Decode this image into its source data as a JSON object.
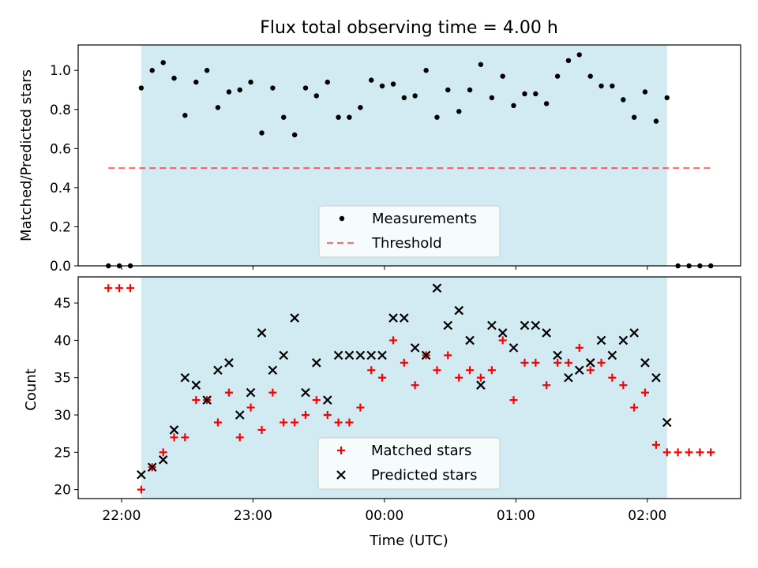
{
  "title": "Flux total observing time = 4.00 h",
  "colors": {
    "shade": "#add8e6",
    "measurement": "#000000",
    "threshold": "#ff0000",
    "matched": "#ff0000",
    "predicted": "#000000"
  },
  "chart_data": [
    {
      "type": "scatter",
      "ylabel": "Matched/Predicted stars",
      "xlabel": "",
      "x_unit": "hours since 00:00 UTC",
      "xlim": [
        -2.33,
        2.71
      ],
      "ylim": [
        0.0,
        1.13
      ],
      "yticks": [
        0.0,
        0.2,
        0.4,
        0.6,
        0.8,
        1.0
      ],
      "ytick_labels": [
        "0.0",
        "0.2",
        "0.4",
        "0.6",
        "0.8",
        "1.0"
      ],
      "shaded_region": [
        -1.85,
        2.15
      ],
      "legend_placement": "lower center",
      "series": [
        {
          "name": "Measurements",
          "style": "dots",
          "x": [
            -2.1,
            -2.017,
            -1.933,
            -1.85,
            -1.767,
            -1.683,
            -1.6,
            -1.517,
            -1.433,
            -1.35,
            -1.267,
            -1.183,
            -1.1,
            -1.017,
            -0.933,
            -0.85,
            -0.767,
            -0.683,
            -0.6,
            -0.517,
            -0.433,
            -0.35,
            -0.267,
            -0.183,
            -0.1,
            -0.017,
            0.067,
            0.15,
            0.233,
            0.317,
            0.4,
            0.483,
            0.567,
            0.65,
            0.733,
            0.817,
            0.9,
            0.983,
            1.067,
            1.15,
            1.233,
            1.317,
            1.4,
            1.483,
            1.567,
            1.65,
            1.733,
            1.817,
            1.9,
            1.983,
            2.067,
            2.15,
            2.233,
            2.317,
            2.4,
            2.483
          ],
          "y": [
            0.0,
            0.0,
            0.0,
            0.91,
            1.0,
            1.04,
            0.96,
            0.77,
            0.94,
            1.0,
            0.81,
            0.89,
            0.9,
            0.94,
            0.68,
            0.91,
            0.76,
            0.67,
            0.91,
            0.87,
            0.94,
            0.76,
            0.76,
            0.81,
            0.95,
            0.92,
            0.93,
            0.86,
            0.87,
            1.0,
            0.76,
            0.9,
            0.79,
            0.9,
            1.03,
            0.86,
            0.97,
            0.82,
            0.88,
            0.88,
            0.83,
            0.97,
            1.05,
            1.08,
            0.97,
            0.92,
            0.92,
            0.85,
            0.76,
            0.89,
            0.74,
            0.86,
            0.0,
            0.0,
            0.0,
            0.0
          ]
        },
        {
          "name": "Threshold",
          "style": "dashed",
          "x": [
            -2.1,
            2.483
          ],
          "y": [
            0.5,
            0.5
          ]
        }
      ]
    },
    {
      "type": "scatter",
      "ylabel": "Count",
      "xlabel": "Time (UTC)",
      "x_unit": "hours since 00:00 UTC",
      "xlim": [
        -2.33,
        2.71
      ],
      "ylim": [
        18.8,
        48.5
      ],
      "yticks": [
        20,
        25,
        30,
        35,
        40,
        45
      ],
      "ytick_labels": [
        "20",
        "25",
        "30",
        "35",
        "40",
        "45"
      ],
      "xticks": [
        -2,
        -1,
        0,
        1,
        2
      ],
      "xtick_labels": [
        "22:00",
        "23:00",
        "00:00",
        "01:00",
        "02:00"
      ],
      "shaded_region": [
        -1.85,
        2.15
      ],
      "legend_placement": "lower center",
      "series": [
        {
          "name": "Matched stars",
          "marker": "+",
          "x": [
            -2.1,
            -2.017,
            -1.933,
            -1.85,
            -1.767,
            -1.683,
            -1.6,
            -1.517,
            -1.433,
            -1.35,
            -1.267,
            -1.183,
            -1.1,
            -1.017,
            -0.933,
            -0.85,
            -0.767,
            -0.683,
            -0.6,
            -0.517,
            -0.433,
            -0.35,
            -0.267,
            -0.183,
            -0.1,
            -0.017,
            0.067,
            0.15,
            0.233,
            0.317,
            0.4,
            0.483,
            0.567,
            0.65,
            0.733,
            0.817,
            0.9,
            0.983,
            1.067,
            1.15,
            1.233,
            1.317,
            1.4,
            1.483,
            1.567,
            1.65,
            1.733,
            1.817,
            1.9,
            1.983,
            2.067,
            2.15,
            2.233,
            2.317,
            2.4,
            2.483
          ],
          "y": [
            47,
            47,
            47,
            20,
            23,
            25,
            27,
            27,
            32,
            32,
            29,
            33,
            27,
            31,
            28,
            33,
            29,
            29,
            30,
            32,
            30,
            29,
            29,
            31,
            36,
            35,
            40,
            37,
            34,
            38,
            36,
            38,
            35,
            36,
            35,
            36,
            40,
            32,
            37,
            37,
            34,
            37,
            37,
            39,
            36,
            37,
            35,
            34,
            31,
            33,
            26,
            25,
            25,
            25,
            25,
            25
          ]
        },
        {
          "name": "Predicted stars",
          "marker": "x",
          "x": [
            -1.85,
            -1.767,
            -1.683,
            -1.6,
            -1.517,
            -1.433,
            -1.35,
            -1.267,
            -1.183,
            -1.1,
            -1.017,
            -0.933,
            -0.85,
            -0.767,
            -0.683,
            -0.6,
            -0.517,
            -0.433,
            -0.35,
            -0.267,
            -0.183,
            -0.1,
            -0.017,
            0.067,
            0.15,
            0.233,
            0.317,
            0.4,
            0.483,
            0.567,
            0.65,
            0.733,
            0.817,
            0.9,
            0.983,
            1.067,
            1.15,
            1.233,
            1.317,
            1.4,
            1.483,
            1.567,
            1.65,
            1.733,
            1.817,
            1.9,
            1.983,
            2.067,
            2.15
          ],
          "y": [
            22,
            23,
            24,
            28,
            35,
            34,
            32,
            36,
            37,
            30,
            33,
            41,
            36,
            38,
            43,
            33,
            37,
            32,
            38,
            38,
            38,
            38,
            38,
            43,
            43,
            39,
            38,
            47,
            42,
            44,
            40,
            34,
            42,
            41,
            39,
            42,
            42,
            41,
            38,
            35,
            36,
            37,
            40,
            38,
            40,
            41,
            37,
            35,
            29
          ]
        }
      ]
    }
  ]
}
